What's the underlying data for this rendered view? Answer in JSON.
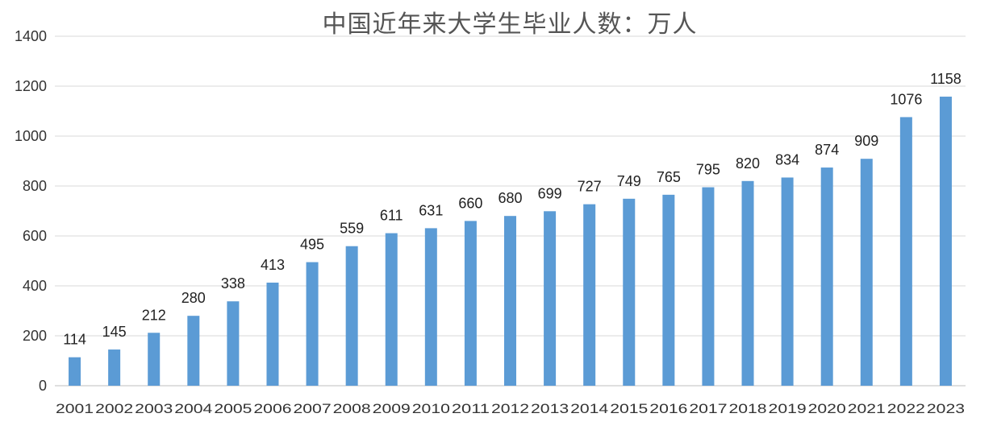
{
  "chart_data": {
    "type": "bar",
    "title": "中国近年来大学生毕业人数：万人",
    "xlabel": "",
    "ylabel": "",
    "ylim": [
      0,
      1400
    ],
    "yticks": [
      0,
      200,
      400,
      600,
      800,
      1000,
      1200,
      1400
    ],
    "grid": true,
    "legend": "none",
    "bar_color": "#5b9bd5",
    "categories": [
      "2001",
      "2002",
      "2003",
      "2004",
      "2005",
      "2006",
      "2007",
      "2008",
      "2009",
      "2010",
      "2011",
      "2012",
      "2013",
      "2014",
      "2015",
      "2016",
      "2017",
      "2018",
      "2019",
      "2020",
      "2021",
      "2022",
      "2023"
    ],
    "values": [
      114,
      145,
      212,
      280,
      338,
      413,
      495,
      559,
      611,
      631,
      660,
      680,
      699,
      727,
      749,
      765,
      795,
      820,
      834,
      874,
      909,
      1076,
      1158
    ]
  }
}
